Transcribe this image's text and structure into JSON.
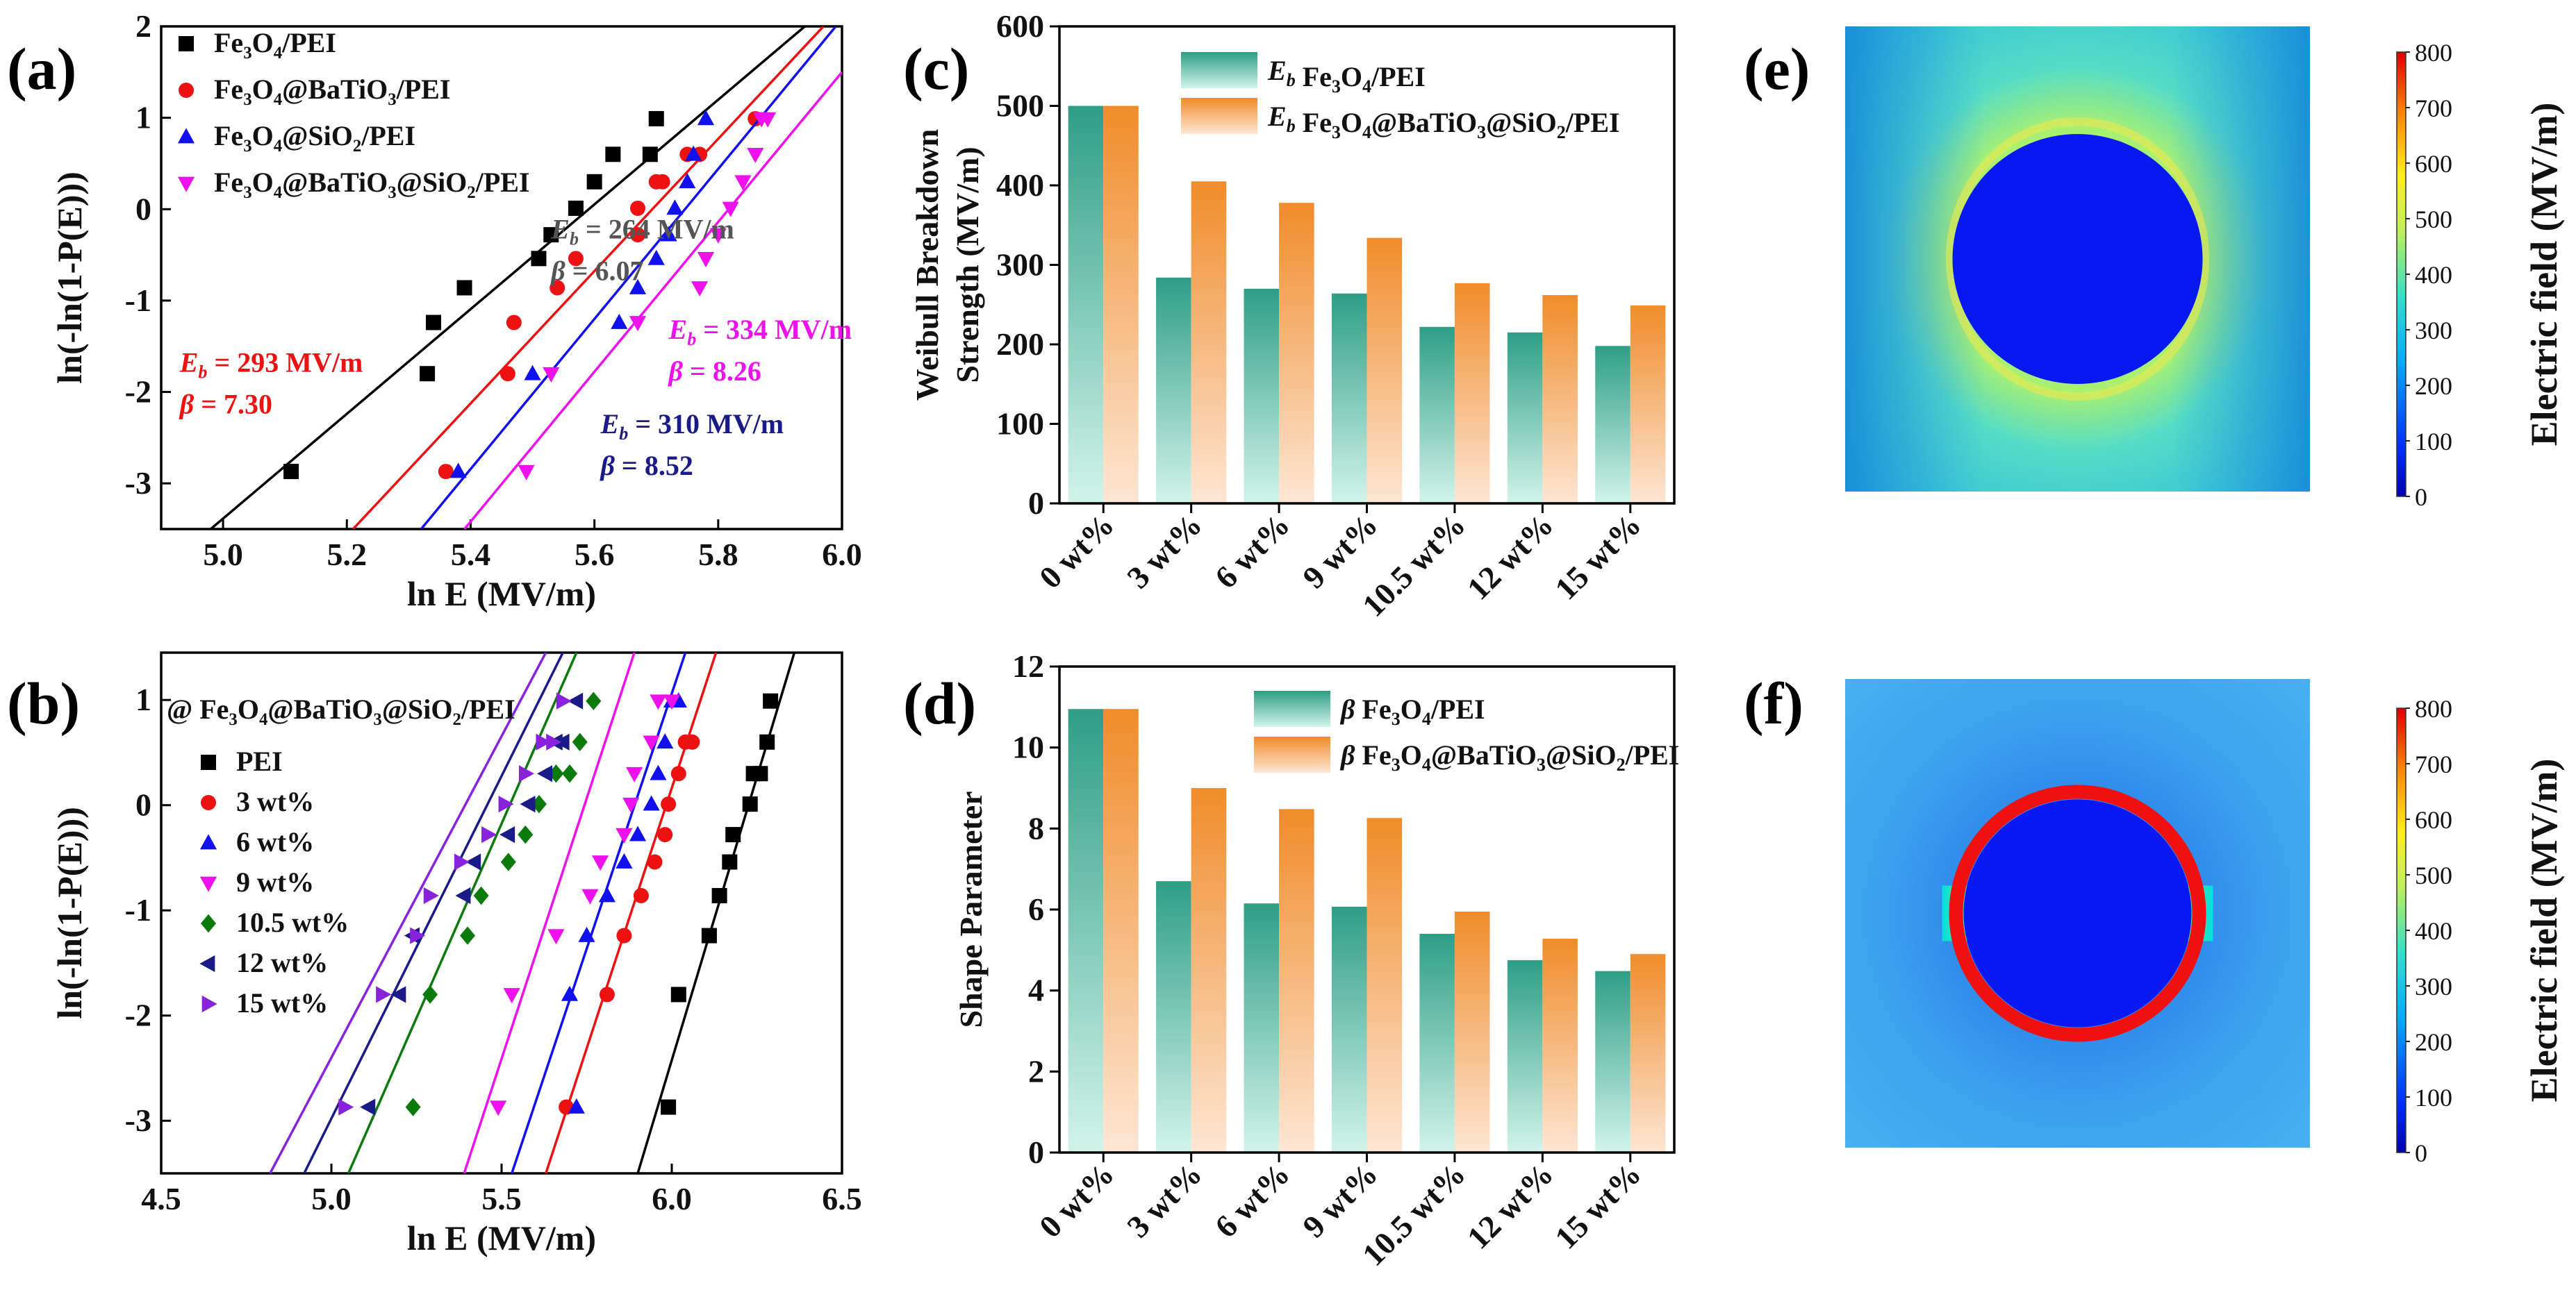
{
  "panels": {
    "a": {
      "label": "(a)"
    },
    "b": {
      "label": "(b)"
    },
    "c": {
      "label": "(c)"
    },
    "d": {
      "label": "(d)"
    },
    "e": {
      "label": "(e)"
    },
    "f": {
      "label": "(f)"
    }
  },
  "colors": {
    "black": "#000000",
    "red": "#ee1111",
    "blue": "#1111ee",
    "magenta": "#ee11ee",
    "green": "#0a7a0a",
    "navy": "#1a1a88",
    "purple": "#8822dd",
    "teal": "#2e9e86",
    "teal_light": "#c8f0e4",
    "orange": "#f08c2a",
    "orange_light": "#fde1cc"
  },
  "chart_data": [
    {
      "id": "a",
      "type": "scatter",
      "title": "",
      "xlabel": "ln E (MV/m)",
      "ylabel": "ln(-ln(1-P(E)))",
      "xlim": [
        4.9,
        6.0
      ],
      "ylim": [
        -3.5,
        2
      ],
      "xticks": [
        "5.0",
        "5.2",
        "5.4",
        "5.6",
        "5.8",
        "6.0"
      ],
      "xtick_values": [
        5.0,
        5.2,
        5.4,
        5.6,
        5.8,
        6.0
      ],
      "yticks": [
        "-3",
        "-2",
        "-1",
        "0",
        "1",
        "2"
      ],
      "ytick_values": [
        -3,
        -2,
        -1,
        0,
        1,
        2
      ],
      "annotations": [
        {
          "eb": "264 MV/m",
          "beta": "6.07",
          "color": "#555555",
          "anchor": [
            5.53,
            -0.32
          ]
        },
        {
          "eb": "293 MV/m",
          "beta": "7.30",
          "color": "#ee1111",
          "anchor": [
            4.93,
            -1.78
          ]
        },
        {
          "eb": "334 MV/m",
          "beta": "8.26",
          "color": "#ee11ee",
          "anchor": [
            5.72,
            -1.42
          ]
        },
        {
          "eb": "310 MV/m",
          "beta": "8.52",
          "color": "#1a1a88",
          "anchor": [
            5.61,
            -2.45
          ]
        }
      ],
      "series": [
        {
          "name": "Fe3O4/PEI",
          "legend": {
            "base": "Fe",
            "parts": [
              [
                "3",
                "O"
              ],
              [
                "4",
                "/PEI"
              ]
            ]
          },
          "marker": "square",
          "color": "#000000",
          "x": [
            5.11,
            5.33,
            5.34,
            5.39,
            5.51,
            5.53,
            5.57,
            5.6,
            5.63,
            5.69,
            5.7
          ],
          "y": [
            -2.87,
            -1.8,
            -1.24,
            -0.86,
            -0.54,
            -0.28,
            0.01,
            0.3,
            0.6,
            0.6,
            0.99
          ],
          "fit": [
            [
              4.98,
              -3.5
            ],
            [
              5.94,
              2.0
            ]
          ]
        },
        {
          "name": "Fe3O4@BaTiO3/PEI",
          "legend": {
            "base": "Fe",
            "parts": [
              [
                "3",
                "O"
              ],
              [
                "4",
                "@BaTiO"
              ],
              [
                "3",
                "/PEI"
              ]
            ]
          },
          "marker": "circle",
          "color": "#ee1111",
          "x": [
            5.36,
            5.46,
            5.47,
            5.54,
            5.57,
            5.67,
            5.67,
            5.7,
            5.71,
            5.75,
            5.77,
            5.86
          ],
          "y": [
            -2.87,
            -1.8,
            -1.24,
            -0.86,
            -0.54,
            -0.28,
            0.01,
            0.3,
            0.3,
            0.6,
            0.6,
            0.99
          ],
          "fit": [
            [
              5.21,
              -3.5
            ],
            [
              5.97,
              2.0
            ]
          ]
        },
        {
          "name": "Fe3O4@SiO2/PEI",
          "legend": {
            "base": "Fe",
            "parts": [
              [
                "3",
                "O"
              ],
              [
                "4",
                "@SiO"
              ],
              [
                "2",
                "/PEI"
              ]
            ]
          },
          "marker": "triangle-up",
          "color": "#1111ee",
          "x": [
            5.38,
            5.5,
            5.64,
            5.67,
            5.7,
            5.72,
            5.73,
            5.75,
            5.76,
            5.78
          ],
          "y": [
            -2.87,
            -1.8,
            -1.24,
            -0.86,
            -0.54,
            -0.28,
            0.01,
            0.3,
            0.6,
            0.99
          ],
          "fit": [
            [
              5.32,
              -3.5
            ],
            [
              5.99,
              2.0
            ]
          ]
        },
        {
          "name": "Fe3O4@BaTiO3@SiO2/PEI",
          "legend": {
            "base": "Fe",
            "parts": [
              [
                "3",
                "O"
              ],
              [
                "4",
                "@BaTiO"
              ],
              [
                "3",
                "@SiO"
              ],
              [
                "2",
                "/PEI"
              ]
            ]
          },
          "marker": "triangle-down",
          "color": "#ee11ee",
          "x": [
            5.49,
            5.53,
            5.67,
            5.77,
            5.78,
            5.8,
            5.82,
            5.84,
            5.86,
            5.87,
            5.88
          ],
          "y": [
            -2.87,
            -1.8,
            -1.24,
            -0.86,
            -0.54,
            -0.28,
            0.01,
            0.3,
            0.6,
            0.99,
            0.99
          ],
          "fit": [
            [
              5.39,
              -3.5
            ],
            [
              6.0,
              1.5
            ]
          ]
        }
      ]
    },
    {
      "id": "b",
      "type": "scatter",
      "title": "",
      "header": {
        "prefix": "@ Fe",
        "parts": [
          [
            "3",
            "O"
          ],
          [
            "4",
            "@BaTiO"
          ],
          [
            "3",
            "@SiO"
          ],
          [
            "2",
            "/PEI"
          ]
        ]
      },
      "xlabel": "ln E (MV/m)",
      "ylabel": "ln(-ln(1-P(E)))",
      "xlim": [
        4.5,
        6.5
      ],
      "ylim": [
        -3.5,
        1.45
      ],
      "xticks": [
        "4.5",
        "5.0",
        "5.5",
        "6.0",
        "6.5"
      ],
      "xtick_values": [
        4.5,
        5.0,
        5.5,
        6.0,
        6.5
      ],
      "yticks": [
        "-3",
        "-2",
        "-1",
        "0",
        "1"
      ],
      "ytick_values": [
        -3,
        -2,
        -1,
        0,
        1
      ],
      "series": [
        {
          "name": "PEI",
          "marker": "square",
          "color": "#000000",
          "x": [
            5.99,
            6.02,
            6.11,
            6.14,
            6.17,
            6.18,
            6.23,
            6.24,
            6.26,
            6.28,
            6.29
          ],
          "y": [
            -2.87,
            -1.8,
            -1.24,
            -0.86,
            -0.54,
            -0.28,
            0.01,
            0.3,
            0.3,
            0.6,
            0.99
          ],
          "fit": [
            [
              5.9,
              -3.5
            ],
            [
              6.36,
              1.45
            ]
          ]
        },
        {
          "name": "3 wt%",
          "marker": "circle",
          "color": "#ee1111",
          "x": [
            5.69,
            5.81,
            5.86,
            5.91,
            5.95,
            5.98,
            5.99,
            6.02,
            6.04,
            6.06
          ],
          "y": [
            -2.87,
            -1.8,
            -1.24,
            -0.86,
            -0.54,
            -0.28,
            0.01,
            0.3,
            0.6,
            0.6
          ],
          "fit": [
            [
              5.63,
              -3.5
            ],
            [
              6.13,
              1.45
            ]
          ]
        },
        {
          "name": "6 wt%",
          "marker": "triangle-up",
          "color": "#1111ee",
          "x": [
            5.7,
            5.72,
            5.75,
            5.81,
            5.86,
            5.9,
            5.94,
            5.96,
            5.98,
            6.0,
            6.02
          ],
          "y": [
            -1.8,
            -2.87,
            -1.24,
            -0.86,
            -0.54,
            -0.28,
            0.01,
            0.3,
            0.6,
            0.99,
            0.99
          ],
          "fit": [
            [
              5.53,
              -3.5
            ],
            [
              6.04,
              1.45
            ]
          ]
        },
        {
          "name": "9 wt%",
          "marker": "triangle-down",
          "color": "#ee11ee",
          "x": [
            5.49,
            5.53,
            5.66,
            5.76,
            5.79,
            5.86,
            5.88,
            5.89,
            5.94,
            5.96,
            6.0
          ],
          "y": [
            -2.87,
            -1.8,
            -1.24,
            -0.86,
            -0.54,
            -0.28,
            0.01,
            0.3,
            0.6,
            0.99,
            0.99
          ],
          "fit": [
            [
              5.39,
              -3.5
            ],
            [
              5.89,
              1.45
            ]
          ]
        },
        {
          "name": "10.5 wt%",
          "marker": "diamond",
          "color": "#0a7a0a",
          "x": [
            5.24,
            5.29,
            5.4,
            5.44,
            5.52,
            5.57,
            5.61,
            5.66,
            5.7,
            5.73,
            5.77
          ],
          "y": [
            -2.87,
            -1.8,
            -1.24,
            -0.86,
            -0.54,
            -0.28,
            0.01,
            0.3,
            0.3,
            0.6,
            0.99
          ],
          "fit": [
            [
              5.05,
              -3.5
            ],
            [
              5.72,
              1.45
            ]
          ]
        },
        {
          "name": "12 wt%",
          "marker": "triangle-left",
          "color": "#1a1a88",
          "x": [
            5.11,
            5.2,
            5.24,
            5.39,
            5.42,
            5.52,
            5.58,
            5.63,
            5.66,
            5.68,
            5.72
          ],
          "y": [
            -2.87,
            -1.8,
            -1.24,
            -0.86,
            -0.54,
            -0.28,
            0.01,
            0.3,
            0.6,
            0.6,
            0.99
          ],
          "fit": [
            [
              4.92,
              -3.5
            ],
            [
              5.68,
              1.45
            ]
          ]
        },
        {
          "name": "15 wt%",
          "marker": "triangle-right",
          "color": "#8822dd",
          "x": [
            5.04,
            5.15,
            5.25,
            5.29,
            5.38,
            5.46,
            5.51,
            5.57,
            5.62,
            5.65,
            5.68
          ],
          "y": [
            -2.87,
            -1.8,
            -1.24,
            -0.86,
            -0.54,
            -0.28,
            0.01,
            0.3,
            0.6,
            0.6,
            0.99
          ],
          "fit": [
            [
              4.82,
              -3.5
            ],
            [
              5.63,
              1.45
            ]
          ]
        }
      ]
    },
    {
      "id": "c",
      "type": "bar",
      "title": "",
      "ylabel_lines": [
        "Weibull Breakdown",
        "Strength (MV/m)"
      ],
      "ylim": [
        0,
        600
      ],
      "yticks": [
        "0",
        "100",
        "200",
        "300",
        "400",
        "500",
        "600"
      ],
      "ytick_values": [
        0,
        100,
        200,
        300,
        400,
        500,
        600
      ],
      "categories": [
        "0 wt%",
        "3 wt%",
        "6 wt%",
        "9 wt%",
        "10.5 wt%",
        "12 wt%",
        "15 wt%"
      ],
      "series": [
        {
          "name": "Eb Fe3O4/PEI",
          "sym": "E",
          "sub": "b",
          "legend": {
            "base": "Fe",
            "parts": [
              [
                "3",
                "O"
              ],
              [
                "4",
                "/PEI"
              ]
            ]
          },
          "palette": "teal",
          "values": [
            500,
            284,
            270,
            264,
            222,
            215,
            198
          ]
        },
        {
          "name": "Eb Fe3O4@BaTiO3@SiO2/PEI",
          "sym": "E",
          "sub": "b",
          "legend": {
            "base": "Fe",
            "parts": [
              [
                "3",
                "O"
              ],
              [
                "4",
                "@BaTiO"
              ],
              [
                "3",
                "@SiO"
              ],
              [
                "2",
                "/PEI"
              ]
            ]
          },
          "palette": "orange",
          "values": [
            500,
            405,
            378,
            334,
            277,
            262,
            249
          ]
        }
      ]
    },
    {
      "id": "d",
      "type": "bar",
      "title": "",
      "ylabel_lines": [
        "Shape Parameter"
      ],
      "ylim": [
        0,
        12
      ],
      "yticks": [
        "0",
        "2",
        "4",
        "6",
        "8",
        "10",
        "12"
      ],
      "ytick_values": [
        0,
        2,
        4,
        6,
        8,
        10,
        12
      ],
      "categories": [
        "0 wt%",
        "3 wt%",
        "6 wt%",
        "9 wt%",
        "10.5 wt%",
        "12 wt%",
        "15 wt%"
      ],
      "series": [
        {
          "name": "beta Fe3O4/PEI",
          "sym": "β",
          "sub": "",
          "legend": {
            "base": "Fe",
            "parts": [
              [
                "3",
                "O"
              ],
              [
                "4",
                "/PEI"
              ]
            ]
          },
          "palette": "teal",
          "values": [
            10.95,
            6.7,
            6.15,
            6.07,
            5.4,
            4.75,
            4.48
          ]
        },
        {
          "name": "beta Fe3O4@BaTiO3@SiO2/PEI",
          "sym": "β",
          "sub": "",
          "legend": {
            "base": "Fe",
            "parts": [
              [
                "3",
                "O"
              ],
              [
                "4",
                "@BaTiO"
              ],
              [
                "3",
                "@SiO"
              ],
              [
                "2",
                "/PEI"
              ]
            ]
          },
          "palette": "orange",
          "values": [
            10.95,
            9.0,
            8.48,
            8.26,
            5.95,
            5.28,
            4.9
          ]
        }
      ]
    },
    {
      "id": "e",
      "type": "heatmap",
      "title": "",
      "colorbar_label": "Electric field  (MV/m)",
      "colorbar_range": [
        0,
        800
      ],
      "colorbar_ticks": [
        "0",
        "100",
        "200",
        "300",
        "400",
        "500",
        "600",
        "700",
        "800"
      ],
      "colorbar_tick_values": [
        0,
        100,
        200,
        300,
        400,
        500,
        600,
        700,
        800
      ],
      "shell": false
    },
    {
      "id": "f",
      "type": "heatmap",
      "title": "",
      "colorbar_label": "Electric field  (MV/m)",
      "colorbar_range": [
        0,
        800
      ],
      "colorbar_ticks": [
        "0",
        "100",
        "200",
        "300",
        "400",
        "500",
        "600",
        "700",
        "800"
      ],
      "colorbar_tick_values": [
        0,
        100,
        200,
        300,
        400,
        500,
        600,
        700,
        800
      ],
      "shell": true
    }
  ]
}
